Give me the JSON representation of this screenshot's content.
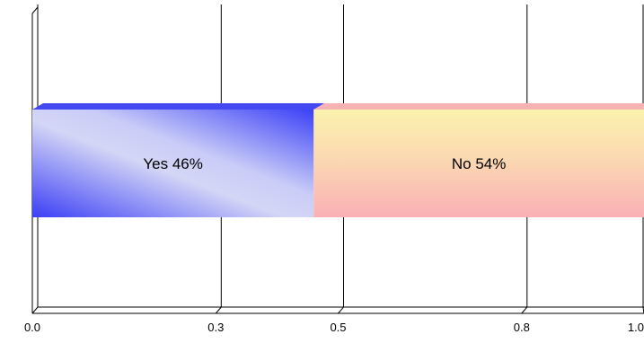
{
  "chart_data": {
    "type": "bar",
    "orientation": "horizontal",
    "stacked": true,
    "percent_stacked": true,
    "categories": [
      ""
    ],
    "series": [
      {
        "name": "Yes",
        "values": [
          0.46
        ],
        "label": "Yes 46%",
        "color": "#3a3ef5"
      },
      {
        "name": "No",
        "values": [
          0.54
        ],
        "label": "No 54%",
        "color": "#fab4b8"
      }
    ],
    "x_ticks": [
      "0.0",
      "0.3",
      "0.5",
      "0.8",
      "1.0"
    ],
    "xlim": [
      0,
      1
    ],
    "grid": true,
    "legend": "none",
    "title": "",
    "xlabel": "",
    "ylabel": ""
  }
}
